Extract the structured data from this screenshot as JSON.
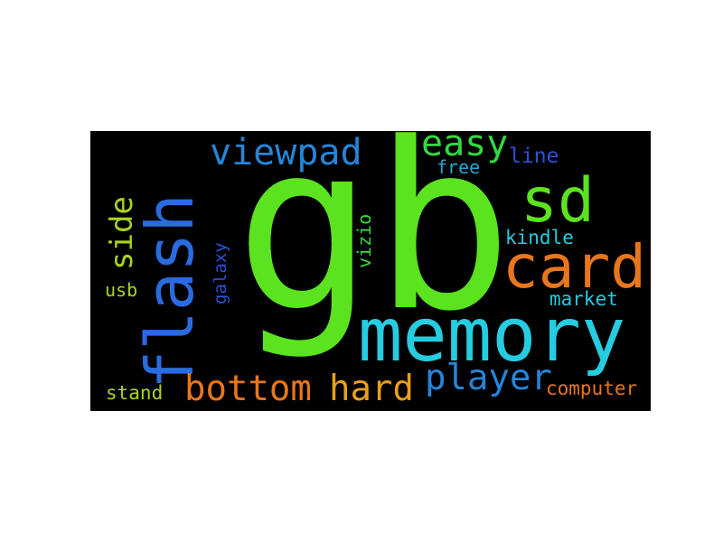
{
  "words": [
    {
      "text": "gb",
      "color": "#5be31f"
    },
    {
      "text": "memory",
      "color": "#26cce0"
    },
    {
      "text": "flash",
      "color": "#2a6be0"
    },
    {
      "text": "card",
      "color": "#e8761c"
    },
    {
      "text": "sd",
      "color": "#5be31f"
    },
    {
      "text": "viewpad",
      "color": "#2585d9"
    },
    {
      "text": "easy",
      "color": "#33d93f"
    },
    {
      "text": "line",
      "color": "#2b52d6"
    },
    {
      "text": "free",
      "color": "#23a9d6"
    },
    {
      "text": "side",
      "color": "#a9d41d"
    },
    {
      "text": "usb",
      "color": "#a9d41d"
    },
    {
      "text": "galaxy",
      "color": "#2b52d6"
    },
    {
      "text": "vizio",
      "color": "#33d93f"
    },
    {
      "text": "kindle",
      "color": "#26cce0"
    },
    {
      "text": "market",
      "color": "#26cce0"
    },
    {
      "text": "bottom",
      "color": "#e8761c"
    },
    {
      "text": "hard",
      "color": "#e8a01c"
    },
    {
      "text": "player",
      "color": "#2585d9"
    },
    {
      "text": "computer",
      "color": "#e8761c"
    },
    {
      "text": "stand",
      "color": "#a9d41d"
    }
  ]
}
